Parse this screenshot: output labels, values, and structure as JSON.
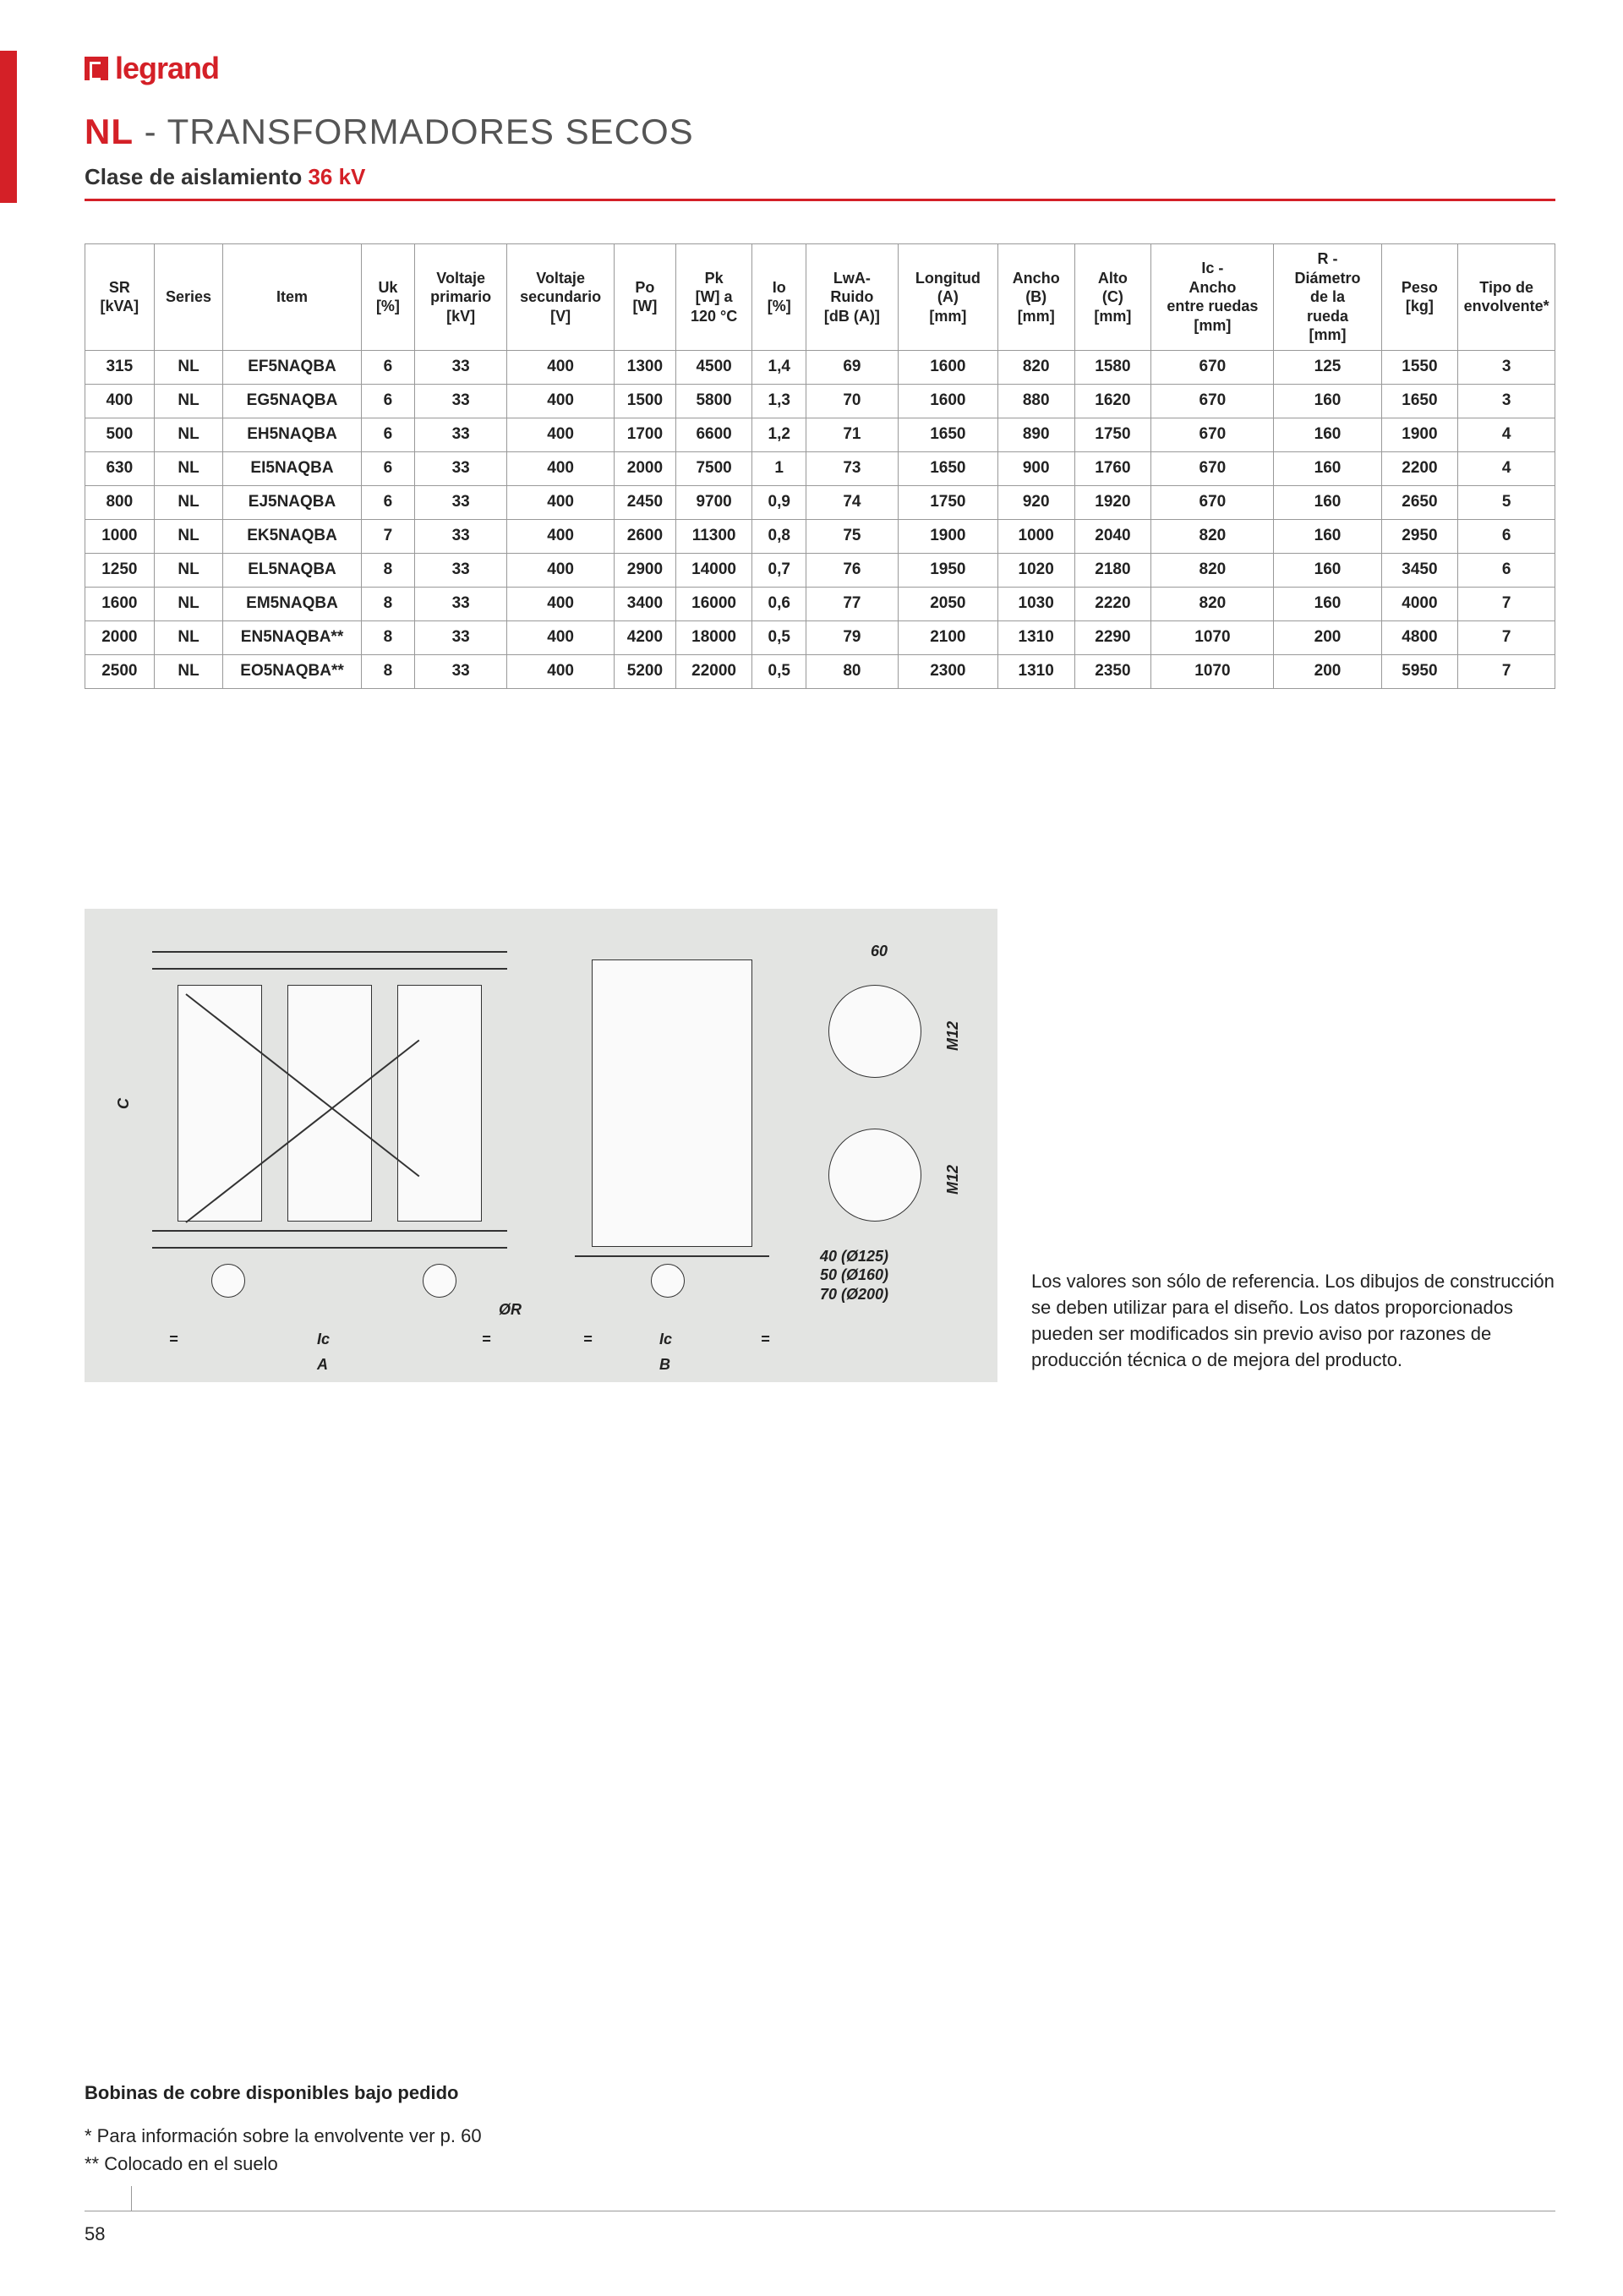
{
  "brand": "legrand",
  "title_prefix": "NL",
  "title_rest": " - TRANSFORMADORES SECOS",
  "subtitle_prefix": "Clase de aislamiento ",
  "subtitle_kv": "36 kV",
  "colors": {
    "accent": "#d42027",
    "border": "#999999",
    "diagram_bg": "#e3e4e2"
  },
  "table": {
    "columns": [
      "SR\n[kVA]",
      "Series",
      "Item",
      "Uk\n[%]",
      "Voltaje\nprimario\n[kV]",
      "Voltaje\nsecundario\n[V]",
      "Po\n[W]",
      "Pk\n[W] a\n120 °C",
      "Io\n[%]",
      "LwA-\nRuido\n[dB (A)]",
      "Longitud\n(A)\n[mm]",
      "Ancho\n(B)\n[mm]",
      "Alto\n(C)\n[mm]",
      "Ic -\nAncho\nentre ruedas\n[mm]",
      "R -\nDiámetro\nde la\nrueda\n[mm]",
      "Peso\n[kg]",
      "Tipo de\nenvolvente*"
    ],
    "rows": [
      [
        "315",
        "NL",
        "EF5NAQBA",
        "6",
        "33",
        "400",
        "1300",
        "4500",
        "1,4",
        "69",
        "1600",
        "820",
        "1580",
        "670",
        "125",
        "1550",
        "3"
      ],
      [
        "400",
        "NL",
        "EG5NAQBA",
        "6",
        "33",
        "400",
        "1500",
        "5800",
        "1,3",
        "70",
        "1600",
        "880",
        "1620",
        "670",
        "160",
        "1650",
        "3"
      ],
      [
        "500",
        "NL",
        "EH5NAQBA",
        "6",
        "33",
        "400",
        "1700",
        "6600",
        "1,2",
        "71",
        "1650",
        "890",
        "1750",
        "670",
        "160",
        "1900",
        "4"
      ],
      [
        "630",
        "NL",
        "EI5NAQBA",
        "6",
        "33",
        "400",
        "2000",
        "7500",
        "1",
        "73",
        "1650",
        "900",
        "1760",
        "670",
        "160",
        "2200",
        "4"
      ],
      [
        "800",
        "NL",
        "EJ5NAQBA",
        "6",
        "33",
        "400",
        "2450",
        "9700",
        "0,9",
        "74",
        "1750",
        "920",
        "1920",
        "670",
        "160",
        "2650",
        "5"
      ],
      [
        "1000",
        "NL",
        "EK5NAQBA",
        "7",
        "33",
        "400",
        "2600",
        "11300",
        "0,8",
        "75",
        "1900",
        "1000",
        "2040",
        "820",
        "160",
        "2950",
        "6"
      ],
      [
        "1250",
        "NL",
        "EL5NAQBA",
        "8",
        "33",
        "400",
        "2900",
        "14000",
        "0,7",
        "76",
        "1950",
        "1020",
        "2180",
        "820",
        "160",
        "3450",
        "6"
      ],
      [
        "1600",
        "NL",
        "EM5NAQBA",
        "8",
        "33",
        "400",
        "3400",
        "16000",
        "0,6",
        "77",
        "2050",
        "1030",
        "2220",
        "820",
        "160",
        "4000",
        "7"
      ],
      [
        "2000",
        "NL",
        "EN5NAQBA**",
        "8",
        "33",
        "400",
        "4200",
        "18000",
        "0,5",
        "79",
        "2100",
        "1310",
        "2290",
        "1070",
        "200",
        "4800",
        "7"
      ],
      [
        "2500",
        "NL",
        "EO5NAQBA**",
        "8",
        "33",
        "400",
        "5200",
        "22000",
        "0,5",
        "80",
        "2300",
        "1310",
        "2350",
        "1070",
        "200",
        "5950",
        "7"
      ]
    ],
    "col_widths_pct": [
      4.5,
      4.5,
      9,
      3.5,
      6,
      7,
      4,
      5,
      3.5,
      6,
      6.5,
      5,
      5,
      8,
      7,
      5,
      6
    ]
  },
  "diagram": {
    "dim_label_60": "60",
    "thread_labels": [
      "M12",
      "M12"
    ],
    "wheel_spec": [
      "40 (Ø125)",
      "50 (Ø160)",
      "70 (Ø200)"
    ],
    "axis_labels": {
      "C": "C",
      "A": "A",
      "B": "B",
      "Ic": "Ic",
      "OR": "ØR",
      "eq": "="
    }
  },
  "disclaimer": "Los valores son sólo de referencia. Los dibujos de construcción se deben utilizar para el diseño. Los datos proporcionados pueden ser modificados sin previo aviso por razones de producción técnica o de mejora del producto.",
  "footnotes": {
    "bold": "Bobinas de cobre disponibles bajo pedido",
    "line1": "* Para información sobre la envolvente ver p. 60",
    "line2": "** Colocado en el suelo"
  },
  "page_number": "58"
}
